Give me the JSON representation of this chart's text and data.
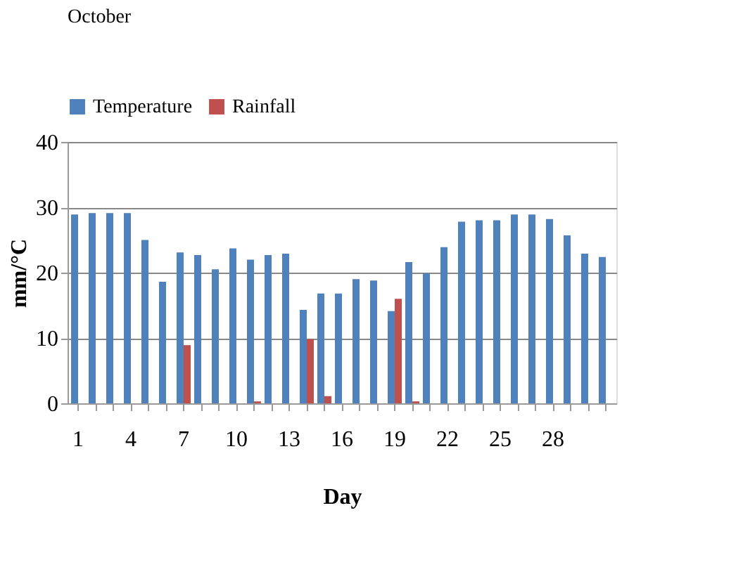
{
  "chart_data": {
    "type": "bar",
    "title": "October",
    "xlabel": "Day",
    "ylabel": "mm/°C",
    "categories": [
      "1",
      null,
      null,
      "4",
      null,
      null,
      "7",
      null,
      null,
      "10",
      null,
      null,
      "13",
      null,
      null,
      "16",
      null,
      null,
      "19",
      null,
      null,
      "22",
      null,
      null,
      "25",
      null,
      null,
      "28",
      null,
      null,
      null
    ],
    "series": [
      {
        "name": "Temperature",
        "color": "#4f81bd",
        "values": [
          28.9,
          29.1,
          29.1,
          29.1,
          25.0,
          18.6,
          23.1,
          22.7,
          20.5,
          23.7,
          22.0,
          22.7,
          22.9,
          14.3,
          16.8,
          16.8,
          19.0,
          18.8,
          14.1,
          21.6,
          19.9,
          23.9,
          27.8,
          28.0,
          28.0,
          28.9,
          28.9,
          28.2,
          25.7,
          22.9,
          22.4
        ]
      },
      {
        "name": "Rainfall",
        "color": "#c0504d",
        "values": [
          0,
          0,
          0,
          0,
          0,
          0,
          8.9,
          0,
          0,
          0,
          0.3,
          0,
          0,
          9.8,
          1.1,
          0,
          0,
          0,
          16.0,
          0.3,
          0,
          0,
          0,
          0,
          0,
          0,
          0,
          0,
          0,
          0,
          0
        ]
      }
    ],
    "ylim": [
      0,
      40
    ],
    "yticks": [
      0,
      10,
      20,
      30,
      40
    ],
    "grid": "y",
    "legend": "top"
  }
}
